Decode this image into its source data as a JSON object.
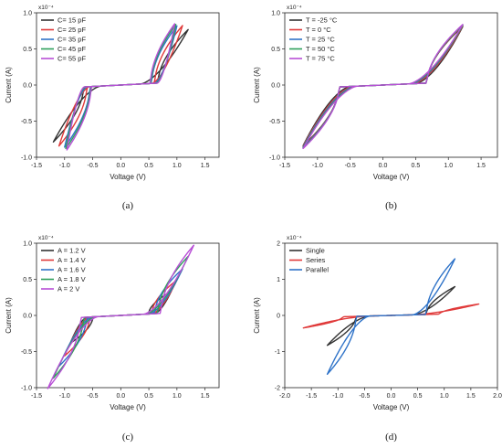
{
  "chart_data": [
    {
      "type": "line",
      "caption": "(a)",
      "xlabel": "Voltage (V)",
      "ylabel": "Current (A)",
      "y_exponent_label": "x10⁻⁴",
      "xlim": [
        -1.5,
        1.75
      ],
      "ylim": [
        -1.0,
        1.0
      ],
      "x_ticks": [
        "-1.5",
        "-1.0",
        "-0.5",
        "0.0",
        "0.5",
        "1.0",
        "1.5"
      ],
      "y_ticks": [
        "-1.0",
        "-0.5",
        "0.0",
        "0.5",
        "1.0"
      ],
      "legend_position": "top-left",
      "series": [
        {
          "name": "C= 15 pF",
          "color": "#333333",
          "peak_pos": 0.72,
          "peak_neg": -0.74,
          "amplitude": 1.2,
          "knee": 0.35
        },
        {
          "name": "C= 25 pF",
          "color": "#e03a3a",
          "peak_pos": 0.78,
          "peak_neg": -0.8,
          "amplitude": 1.1,
          "knee": 0.55
        },
        {
          "name": "C= 35 pF",
          "color": "#2f73c8",
          "peak_pos": 0.78,
          "peak_neg": -0.82,
          "amplitude": 1.0,
          "knee": 0.6
        },
        {
          "name": "C= 45 pF",
          "color": "#2ea05a",
          "peak_pos": 0.8,
          "peak_neg": -0.84,
          "amplitude": 0.98,
          "knee": 0.63
        },
        {
          "name": "C= 55 pF",
          "color": "#b84fd6",
          "peak_pos": 0.81,
          "peak_neg": -0.86,
          "amplitude": 0.96,
          "knee": 0.65
        }
      ]
    },
    {
      "type": "line",
      "caption": "(b)",
      "xlabel": "Voltage (V)",
      "ylabel": "Current (A)",
      "y_exponent_label": "x10⁻⁴",
      "xlim": [
        -1.5,
        1.75
      ],
      "ylim": [
        -1.0,
        1.0
      ],
      "x_ticks": [
        "-1.5",
        "-1.0",
        "-0.5",
        "0.0",
        "0.5",
        "1.0",
        "1.5"
      ],
      "y_ticks": [
        "-1.0",
        "-0.5",
        "0.0",
        "0.5",
        "1.0"
      ],
      "legend_position": "top-left",
      "series": [
        {
          "name": "T = -25 °C",
          "color": "#333333",
          "peak_pos": 0.76,
          "peak_neg": -0.79,
          "amplitude": 1.22,
          "knee": 0.5
        },
        {
          "name": "T = 0 °C",
          "color": "#e03a3a",
          "peak_pos": 0.77,
          "peak_neg": -0.8,
          "amplitude": 1.22,
          "knee": 0.46
        },
        {
          "name": "T = 25 °C",
          "color": "#2f73c8",
          "peak_pos": 0.78,
          "peak_neg": -0.81,
          "amplitude": 1.22,
          "knee": 0.43
        },
        {
          "name": "T = 50 °C",
          "color": "#2ea05a",
          "peak_pos": 0.78,
          "peak_neg": -0.82,
          "amplitude": 1.22,
          "knee": 0.41
        },
        {
          "name": "T = 75 °C",
          "color": "#b84fd6",
          "peak_pos": 0.79,
          "peak_neg": -0.83,
          "amplitude": 1.22,
          "knee": 0.39
        }
      ]
    },
    {
      "type": "line",
      "caption": "(c)",
      "xlabel": "Voltage (V)",
      "ylabel": "Current (A)",
      "y_exponent_label": "x10⁻⁴",
      "xlim": [
        -1.5,
        1.75
      ],
      "ylim": [
        -1.0,
        1.0
      ],
      "x_ticks": [
        "-1.5",
        "-1.0",
        "-0.5",
        "0.0",
        "0.5",
        "1.0",
        "1.5"
      ],
      "y_ticks": [
        "-1.0",
        "-0.5",
        "0.0",
        "0.5",
        "1.0"
      ],
      "legend_position": "top-left",
      "series": [
        {
          "name": "A = 1.2 V",
          "color": "#333333",
          "peak_pos": 0.3,
          "peak_neg": -0.35,
          "amplitude": 0.9,
          "knee": 0.6
        },
        {
          "name": "A = 1.4 V",
          "color": "#e03a3a",
          "peak_pos": 0.45,
          "peak_neg": -0.52,
          "amplitude": 1.0,
          "knee": 0.55
        },
        {
          "name": "A = 1.6 V",
          "color": "#2f73c8",
          "peak_pos": 0.6,
          "peak_neg": -0.66,
          "amplitude": 1.1,
          "knee": 0.5
        },
        {
          "name": "A = 1.8 V",
          "color": "#2ea05a",
          "peak_pos": 0.77,
          "peak_neg": -0.82,
          "amplitude": 1.2,
          "knee": 0.45
        },
        {
          "name": "A = 2 V",
          "color": "#b84fd6",
          "peak_pos": 0.92,
          "peak_neg": -0.96,
          "amplitude": 1.3,
          "knee": 0.4
        }
      ]
    },
    {
      "type": "line",
      "caption": "(d)",
      "xlabel": "Voltage (V)",
      "ylabel": "Current (A)",
      "y_exponent_label": "x10⁻⁴",
      "xlim": [
        -2.0,
        2.0
      ],
      "ylim": [
        -2.0,
        2.0
      ],
      "x_ticks": [
        "-2.0",
        "-1.5",
        "-1.0",
        "-0.5",
        "0.0",
        "0.5",
        "1.0",
        "1.5",
        "2.0"
      ],
      "y_ticks": [
        "-2",
        "-1",
        "0",
        "1",
        "2"
      ],
      "legend_position": "top-left",
      "series": [
        {
          "name": "Single",
          "color": "#333333",
          "peak_pos": 0.75,
          "peak_neg": -0.78,
          "amplitude": 1.2,
          "knee": 0.4
        },
        {
          "name": "Series",
          "color": "#e03a3a",
          "peak_pos": 0.25,
          "peak_neg": -0.28,
          "amplitude": 1.65,
          "knee": 0.4
        },
        {
          "name": "Parallel",
          "color": "#2f73c8",
          "peak_pos": 1.52,
          "peak_neg": -1.58,
          "amplitude": 1.2,
          "knee": 0.4
        }
      ]
    }
  ]
}
